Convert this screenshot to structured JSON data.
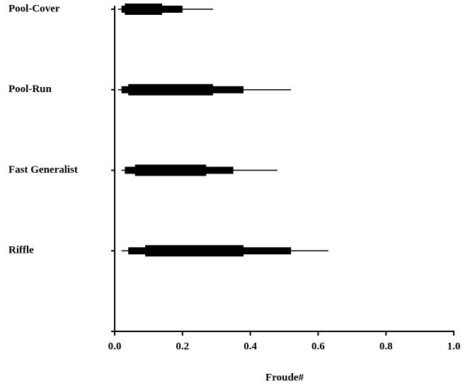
{
  "chart_data": {
    "type": "range-bar",
    "x_label": "Froude#",
    "categories": [
      "Pool-Cover",
      "Pool-Run",
      "Fast Generalist",
      "Riffle"
    ],
    "ranges": [
      {
        "min": 0.01,
        "low": 0.02,
        "q1": 0.03,
        "q3": 0.14,
        "high": 0.2,
        "max": 0.29
      },
      {
        "min": 0.01,
        "low": 0.02,
        "q1": 0.04,
        "q3": 0.29,
        "high": 0.38,
        "max": 0.52
      },
      {
        "min": 0.02,
        "low": 0.03,
        "q1": 0.06,
        "q3": 0.27,
        "high": 0.35,
        "max": 0.48
      },
      {
        "min": 0.02,
        "low": 0.04,
        "q1": 0.09,
        "q3": 0.38,
        "high": 0.52,
        "max": 0.63
      }
    ],
    "color": "#000000",
    "xlim": [
      0,
      1
    ],
    "xticks": [
      {
        "value": 0,
        "label": "0.0"
      },
      {
        "value": 0.2,
        "label": "0.2"
      },
      {
        "value": 0.4,
        "label": "0.4"
      },
      {
        "value": 0.6,
        "label": "0.6"
      },
      {
        "value": 0.8,
        "label": "0.8"
      },
      {
        "value": 1,
        "label": "1.0"
      }
    ]
  }
}
